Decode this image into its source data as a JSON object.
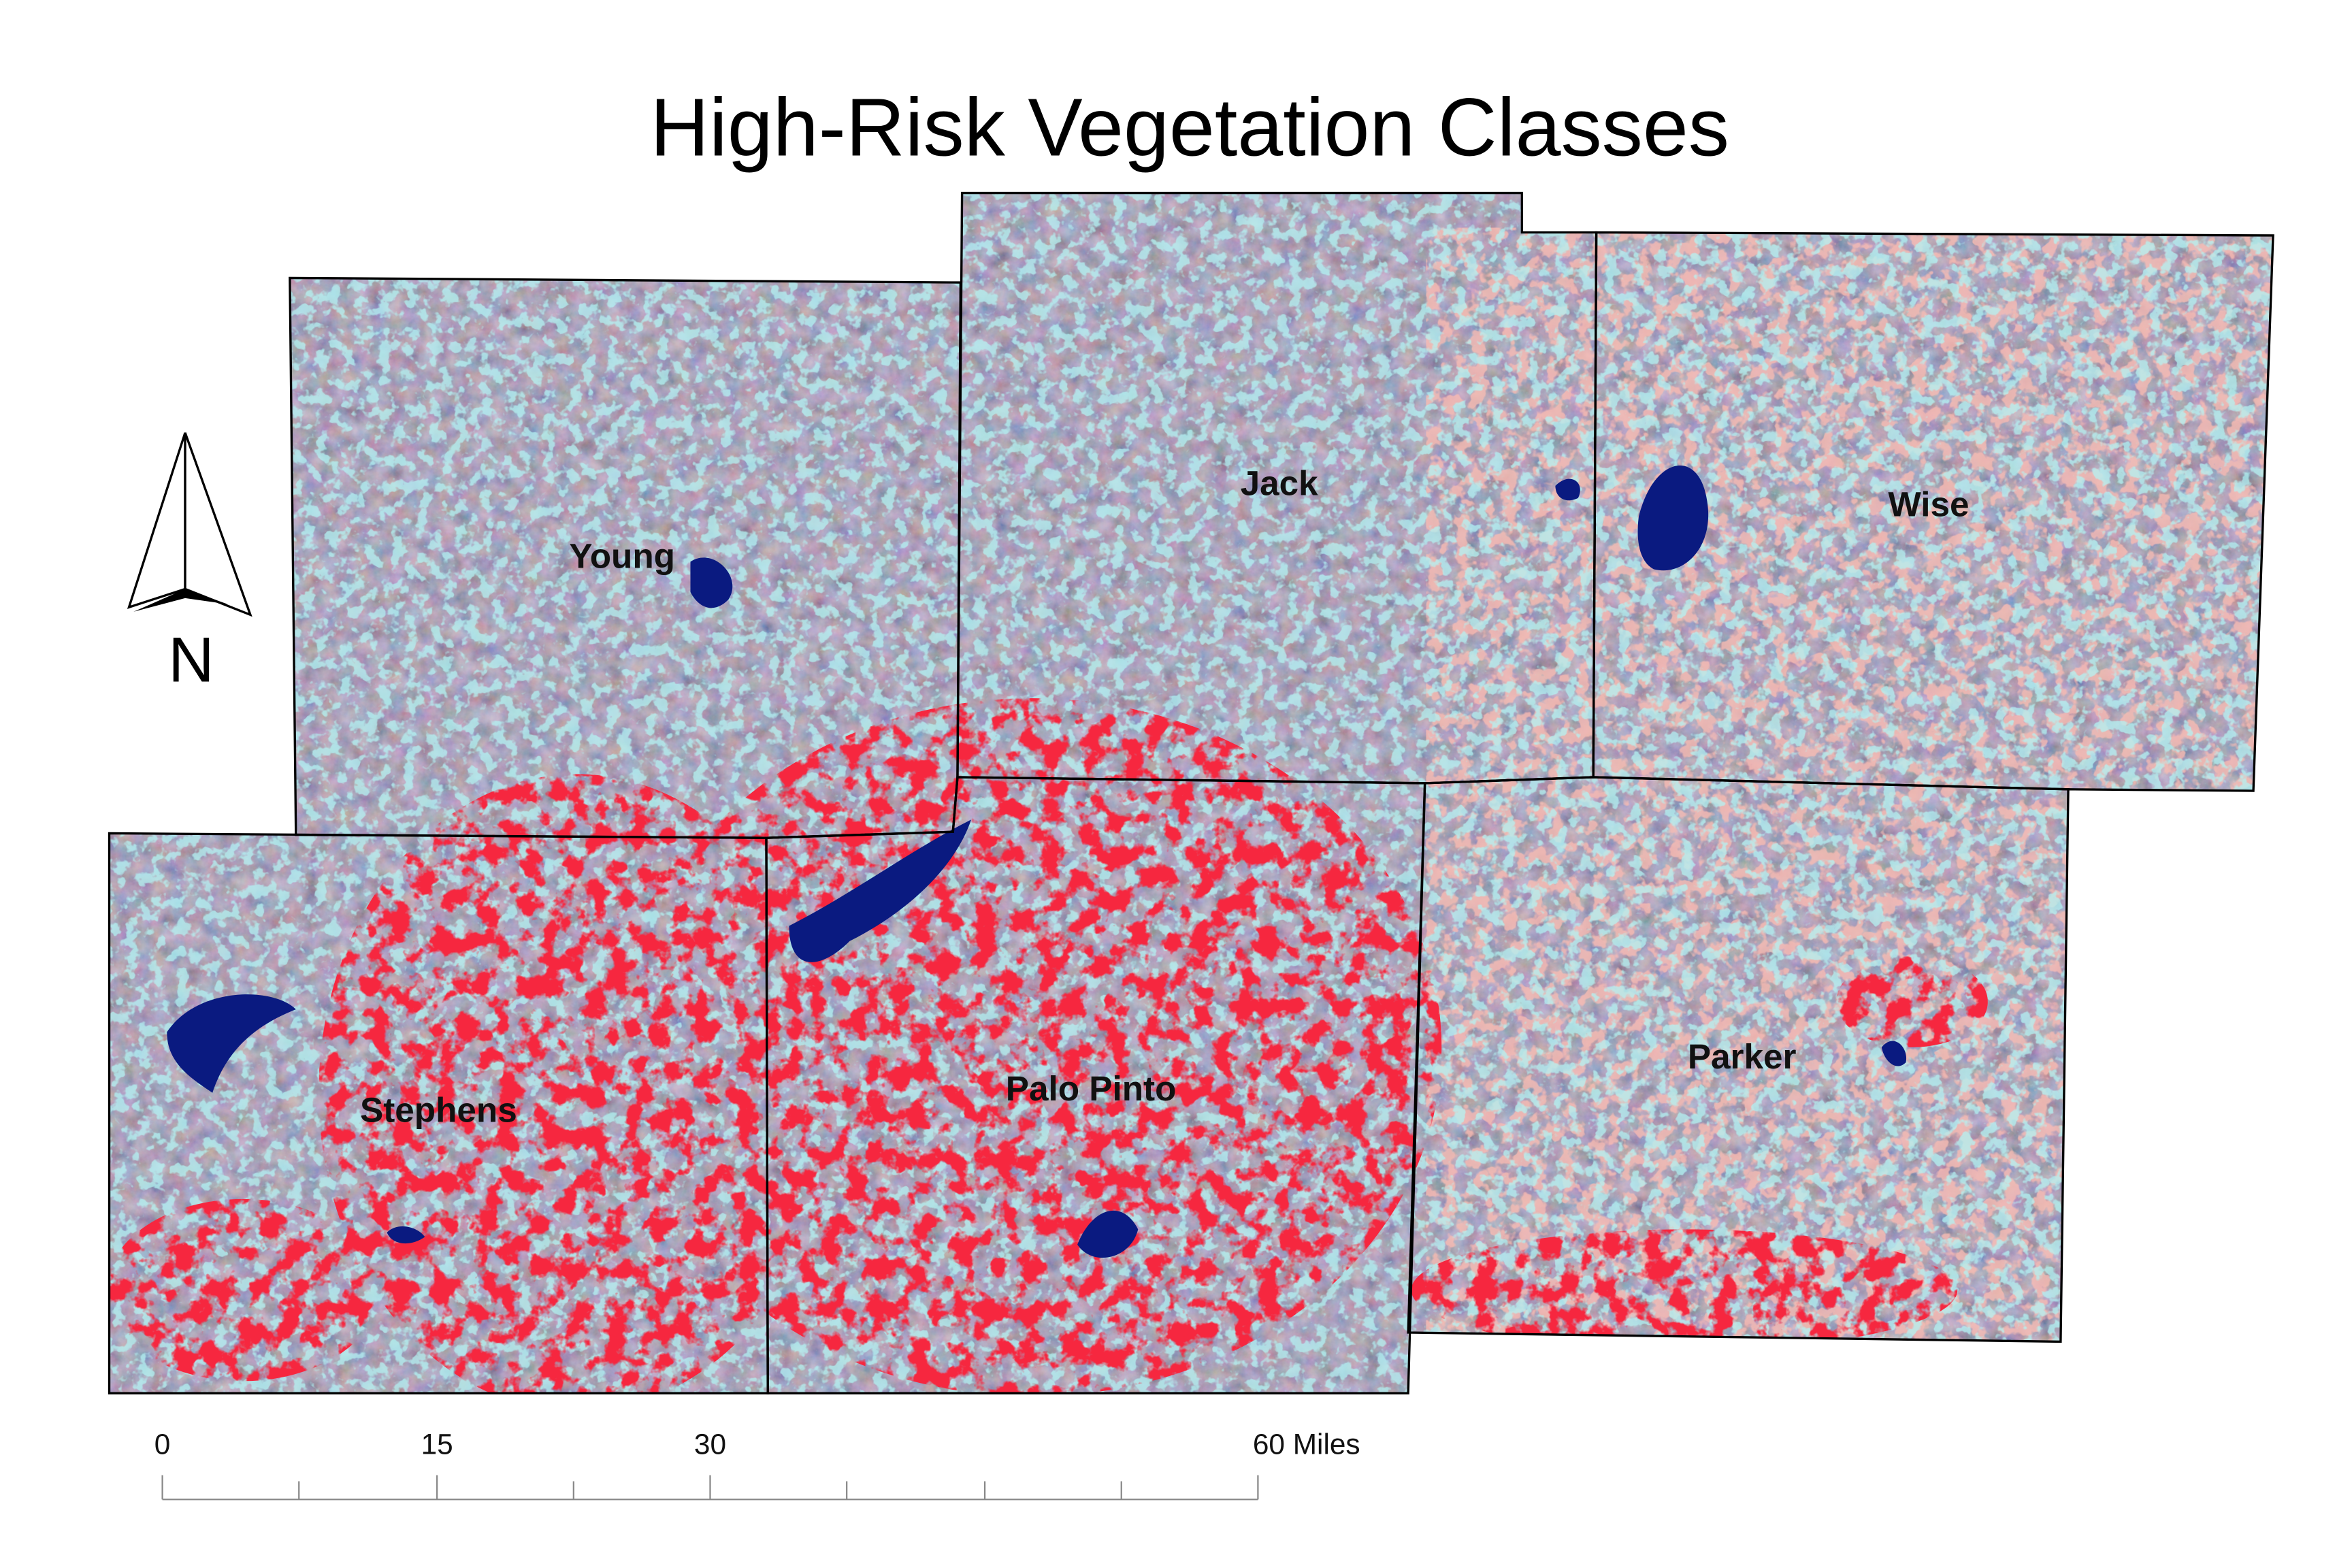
{
  "title": "High-Risk Vegetation Classes",
  "counties": [
    {
      "label": "Young"
    },
    {
      "label": "Jack"
    },
    {
      "label": "Wise"
    },
    {
      "label": "Stephens"
    },
    {
      "label": "Palo Pinto"
    },
    {
      "label": "Parker"
    }
  ],
  "north_arrow": {
    "label": "N"
  },
  "scale_bar": {
    "labels": [
      "0",
      "15",
      "30",
      "60 Miles"
    ]
  }
}
